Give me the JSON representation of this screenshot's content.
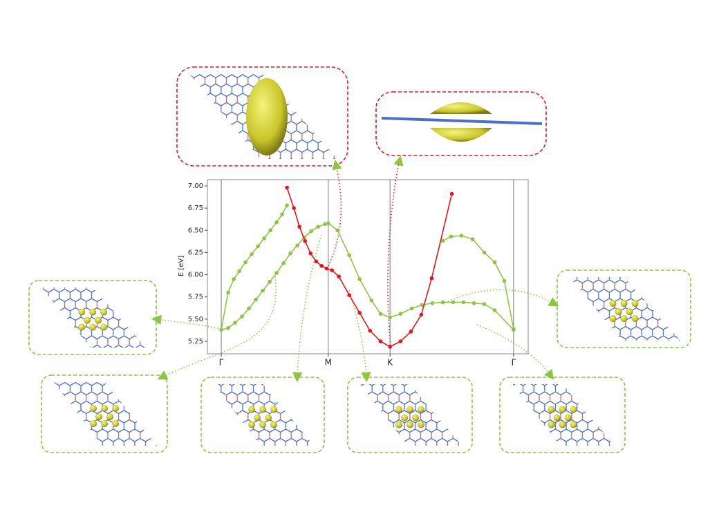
{
  "chart_data": {
    "type": "line",
    "ylabel": "E [eV]",
    "xlim": [
      -0.112,
      2.484
    ],
    "xticks": [
      {
        "value": 0,
        "label": "Γ"
      },
      {
        "value": 0.866,
        "label": "M"
      },
      {
        "value": 1.366,
        "label": "K"
      },
      {
        "value": 2.366,
        "label": "Γ"
      }
    ],
    "ylim": [
      5.11,
      7.07
    ],
    "yticks": [
      5.25,
      {
        "value": 5.5,
        "label": "5.50"
      },
      5.75,
      {
        "value": 6,
        "label": "6.00"
      },
      6.25,
      {
        "value": 6.5,
        "label": "6.50"
      },
      6.75,
      {
        "value": 7,
        "label": "7.00"
      }
    ],
    "xgrid": true,
    "series": [
      {
        "color": "#8cc63f",
        "x": [
          0,
          0.056,
          0.101,
          0.146,
          0.196,
          0.246,
          0.297,
          0.347,
          0.398,
          0.448,
          0.493,
          0.532
        ],
        "values": [
          5.38,
          5.8,
          5.95,
          6.04,
          6.14,
          6.23,
          6.32,
          6.41,
          6.5,
          6.59,
          6.68,
          6.78
        ]
      },
      {
        "color": "#8cc63f",
        "x": [
          0,
          0.056,
          0.112,
          0.168,
          0.224,
          0.28,
          0.336,
          0.392,
          0.448,
          0.504,
          0.56,
          0.616,
          0.672,
          0.728,
          0.784,
          0.84,
          0.866,
          0.941,
          1.036,
          1.12,
          1.216,
          1.289,
          1.366,
          1.451,
          1.541,
          1.625,
          1.709,
          1.793,
          1.877,
          1.961,
          2.045,
          2.129,
          2.213,
          2.366
        ],
        "values": [
          5.38,
          5.4,
          5.46,
          5.53,
          5.62,
          5.72,
          5.82,
          5.92,
          6.02,
          6.13,
          6.24,
          6.33,
          6.42,
          6.49,
          6.54,
          6.57,
          6.58,
          6.5,
          6.22,
          5.95,
          5.71,
          5.56,
          5.52,
          5.56,
          5.62,
          5.66,
          5.68,
          5.69,
          5.69,
          5.69,
          5.68,
          5.67,
          5.6,
          5.38
        ]
      },
      {
        "color": "#8cc63f",
        "x": [
          1.793,
          1.86,
          1.944,
          2.034,
          2.129,
          2.213,
          2.291,
          2.366
        ],
        "values": [
          6.38,
          6.43,
          6.44,
          6.4,
          6.25,
          6.14,
          5.93,
          5.39
        ]
      },
      {
        "color": "#e8141b",
        "x": [
          0.532,
          0.588,
          0.633,
          0.678,
          0.723,
          0.768,
          0.812,
          0.852,
          0.896,
          0.952,
          1.036,
          1.12,
          1.204,
          1.289,
          1.366,
          1.451,
          1.535,
          1.619,
          1.703,
          1.866
        ],
        "values": [
          6.98,
          6.75,
          6.54,
          6.38,
          6.24,
          6.15,
          6.1,
          6.07,
          6.05,
          5.98,
          5.77,
          5.57,
          5.37,
          5.25,
          5.19,
          5.25,
          5.36,
          5.55,
          5.96,
          6.91
        ]
      }
    ]
  }
}
